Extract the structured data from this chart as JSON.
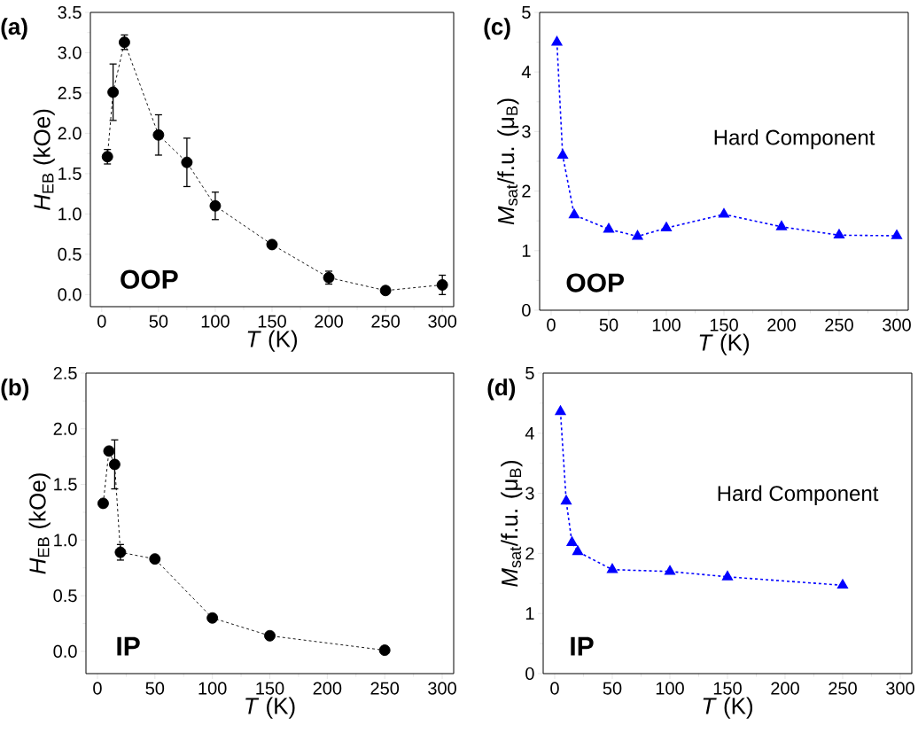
{
  "chart_data": [
    {
      "type": "line",
      "title": "(a)",
      "xlabel": "*T* (K)",
      "ylabel": "*H*$_{EB}$ (kOe)",
      "annotations": [
        "OOP"
      ],
      "x": [
        5,
        10,
        20,
        50,
        75,
        100,
        150,
        200,
        250,
        300
      ],
      "values": [
        1.71,
        2.51,
        3.13,
        1.98,
        1.64,
        1.1,
        0.62,
        0.21,
        0.05,
        0.12
      ],
      "errors": [
        0.09,
        0.35,
        0.09,
        0.25,
        0.3,
        0.17,
        null,
        0.08,
        null,
        0.12
      ],
      "color": "#000000",
      "marker": "circle",
      "line_style": "dashed",
      "grid": false,
      "xlim": [
        -10,
        310
      ],
      "ylim": [
        -0.15,
        3.5
      ],
      "xticks": [
        0,
        50,
        100,
        150,
        200,
        250,
        300
      ],
      "yticks": [
        {
          "value": 0,
          "label": "0.0"
        },
        0.5,
        {
          "value": 1,
          "label": "1.0"
        },
        1.5,
        {
          "value": 2,
          "label": "2.0"
        },
        2.5,
        {
          "value": 3,
          "label": "3.0"
        },
        3.5
      ]
    },
    {
      "type": "line",
      "title": "(c)",
      "xlabel": "*T* (K)",
      "ylabel": "*M*$_{sat}$/f.u. (μ$_{B}$)",
      "annotations": [
        "Hard Component",
        "OOP"
      ],
      "x": [
        5,
        10,
        20,
        50,
        75,
        100,
        150,
        200,
        250,
        300
      ],
      "values": [
        4.5,
        2.6,
        1.6,
        1.36,
        1.24,
        1.38,
        1.61,
        1.4,
        1.26,
        1.25
      ],
      "color": "#0000ff",
      "marker": "triangle",
      "line_style": "dashed",
      "grid": false,
      "xlim": [
        -10,
        310
      ],
      "ylim": [
        0,
        5
      ],
      "xticks": [
        0,
        50,
        100,
        150,
        200,
        250,
        300
      ],
      "yticks": [
        0,
        1,
        2,
        3,
        4,
        5
      ]
    },
    {
      "type": "line",
      "title": "(b)",
      "xlabel": "*T* (K)",
      "ylabel": "*H*$_{EB}$ (kOe)",
      "annotations": [
        "IP"
      ],
      "x": [
        5,
        10,
        15,
        20,
        50,
        100,
        150,
        250
      ],
      "values": [
        1.33,
        1.8,
        1.68,
        0.89,
        0.83,
        0.3,
        0.14,
        0.01
      ],
      "errors": [
        null,
        null,
        0.22,
        0.07,
        null,
        null,
        null,
        null
      ],
      "color": "#000000",
      "marker": "circle",
      "line_style": "dashed",
      "grid": false,
      "xlim": [
        -10,
        310
      ],
      "ylim": [
        -0.2,
        2.5
      ],
      "xticks": [
        0,
        50,
        100,
        150,
        200,
        250,
        300
      ],
      "yticks": [
        {
          "value": 0,
          "label": "0.0"
        },
        0.5,
        {
          "value": 1,
          "label": "1.0"
        },
        1.5,
        {
          "value": 2,
          "label": "2.0"
        },
        2.5
      ]
    },
    {
      "type": "line",
      "title": "(d)",
      "xlabel": "*T* (K)",
      "ylabel": "*M*$_{sat}$/f.u. (μ$_{B}$)",
      "annotations": [
        "Hard Component",
        "IP"
      ],
      "x": [
        5,
        10,
        15,
        20,
        50,
        100,
        150,
        250
      ],
      "values": [
        4.36,
        2.87,
        2.18,
        2.03,
        1.73,
        1.7,
        1.61,
        1.47
      ],
      "color": "#0000ff",
      "marker": "triangle",
      "line_style": "dashed",
      "grid": false,
      "xlim": [
        -10,
        310
      ],
      "ylim": [
        0,
        5
      ],
      "xticks": [
        0,
        50,
        100,
        150,
        200,
        250,
        300
      ],
      "yticks": [
        0,
        1,
        2,
        3,
        4,
        5
      ]
    }
  ]
}
